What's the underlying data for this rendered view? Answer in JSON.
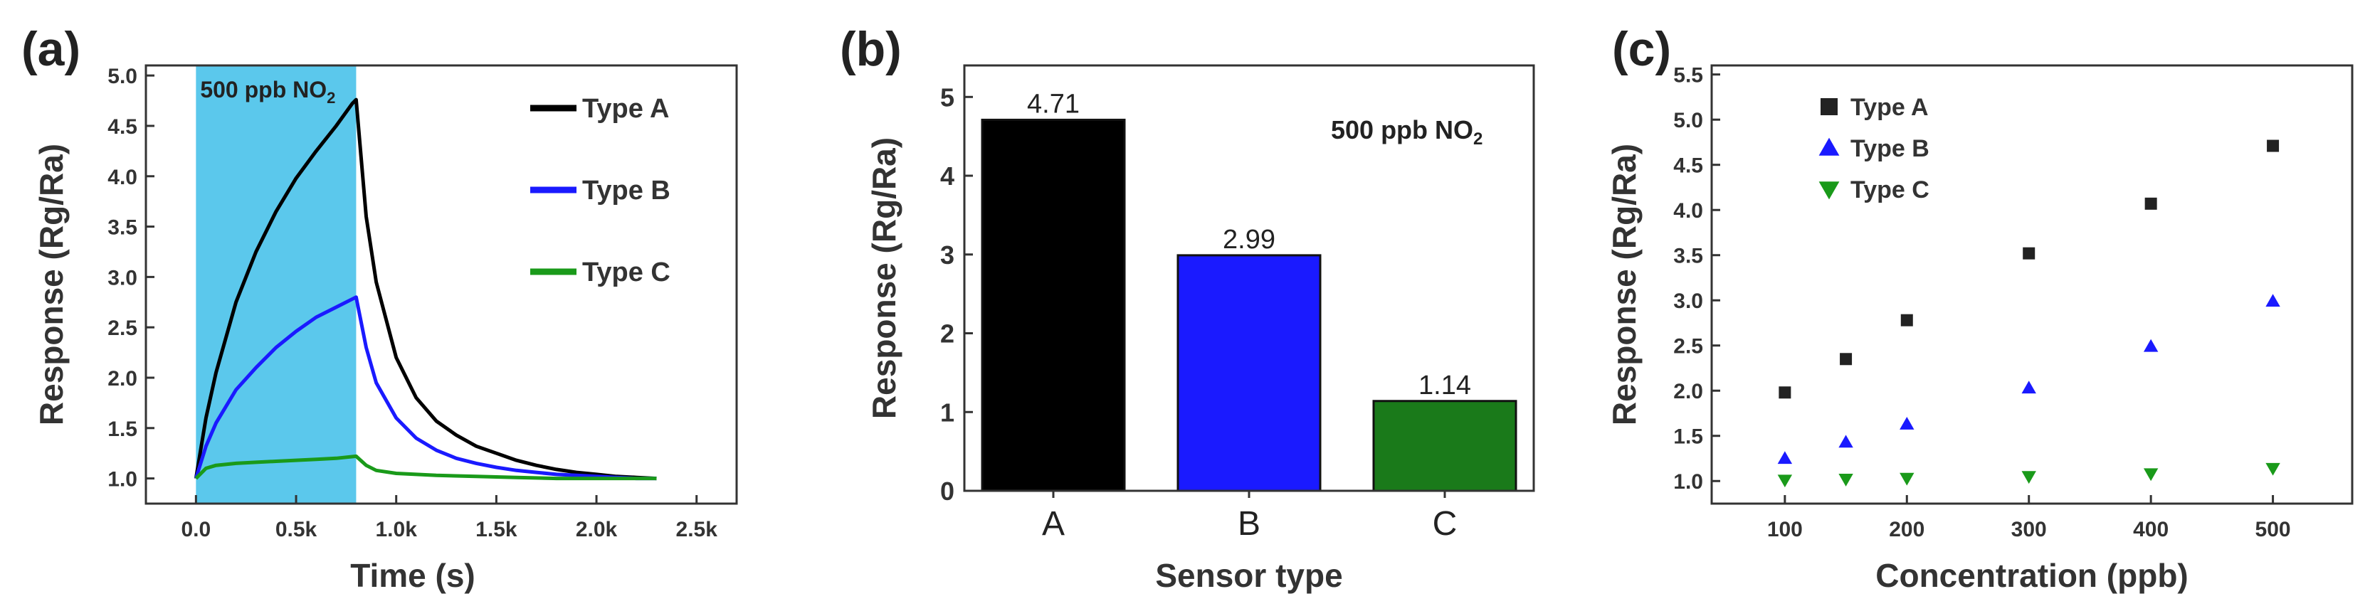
{
  "chart_data": [
    {
      "panel": "(a)",
      "type": "line",
      "xlabel": "Time (s)",
      "ylabel": "Response (Rg/Ra)",
      "xlim": [
        -250,
        2700
      ],
      "ylim": [
        0.75,
        5.1
      ],
      "x_ticks": [
        0,
        500,
        1000,
        1500,
        2000,
        2500
      ],
      "x_tick_labels": [
        "0.0",
        "0.5k",
        "1.0k",
        "1.5k",
        "2.0k",
        "2.5k"
      ],
      "y_ticks": [
        1.0,
        1.5,
        2.0,
        2.5,
        3.0,
        3.5,
        4.0,
        4.5,
        5.0
      ],
      "y_tick_labels": [
        "1.0",
        "1.5",
        "2.0",
        "2.5",
        "3.0",
        "3.5",
        "4.0",
        "4.5",
        "5.0"
      ],
      "annotation": {
        "text": "500 ppb NO",
        "subscript": "2",
        "x_start": 0,
        "x_end": 800,
        "color": "#5bc8ec"
      },
      "legend": "top-right",
      "series": [
        {
          "name": "Type A",
          "color": "#000000",
          "x": [
            0,
            50,
            100,
            200,
            300,
            400,
            500,
            600,
            700,
            780,
            800,
            850,
            900,
            1000,
            1100,
            1200,
            1300,
            1400,
            1500,
            1600,
            1700,
            1800,
            1900,
            2000,
            2100,
            2200,
            2300
          ],
          "y": [
            1.0,
            1.6,
            2.05,
            2.75,
            3.25,
            3.65,
            3.98,
            4.25,
            4.5,
            4.72,
            4.76,
            3.6,
            2.95,
            2.2,
            1.8,
            1.57,
            1.43,
            1.32,
            1.25,
            1.18,
            1.13,
            1.09,
            1.06,
            1.04,
            1.02,
            1.01,
            1.0
          ]
        },
        {
          "name": "Type B",
          "color": "#1a1aff",
          "x": [
            0,
            50,
            100,
            200,
            300,
            400,
            500,
            600,
            700,
            800,
            850,
            900,
            1000,
            1100,
            1200,
            1300,
            1400,
            1500,
            1600,
            1700,
            1800,
            1900,
            2000,
            2100,
            2200,
            2300
          ],
          "y": [
            1.0,
            1.32,
            1.55,
            1.88,
            2.1,
            2.3,
            2.46,
            2.6,
            2.7,
            2.8,
            2.3,
            1.95,
            1.6,
            1.4,
            1.28,
            1.2,
            1.15,
            1.11,
            1.08,
            1.06,
            1.04,
            1.03,
            1.02,
            1.01,
            1.0,
            1.0
          ]
        },
        {
          "name": "Type C",
          "color": "#1a9a1a",
          "x": [
            0,
            50,
            100,
            200,
            300,
            400,
            500,
            600,
            700,
            800,
            850,
            900,
            1000,
            1200,
            1400,
            1600,
            1800,
            2000,
            2200,
            2300
          ],
          "y": [
            1.0,
            1.1,
            1.13,
            1.15,
            1.16,
            1.17,
            1.18,
            1.19,
            1.2,
            1.22,
            1.13,
            1.08,
            1.05,
            1.03,
            1.02,
            1.01,
            1.0,
            1.0,
            1.0,
            1.0
          ]
        }
      ]
    },
    {
      "panel": "(b)",
      "type": "bar",
      "xlabel": "Sensor type",
      "ylabel": "Response (Rg/Ra)",
      "ylim": [
        0,
        5.4
      ],
      "y_ticks": [
        0,
        1,
        2,
        3,
        4,
        5
      ],
      "y_tick_labels": [
        "0",
        "1",
        "2",
        "3",
        "4",
        "5"
      ],
      "annotation": {
        "text": "500 ppb NO",
        "subscript": "2"
      },
      "categories": [
        "A",
        "B",
        "C"
      ],
      "values": [
        4.71,
        2.99,
        1.14
      ],
      "value_labels": [
        "4.71",
        "2.99",
        "1.14"
      ],
      "colors": [
        "#000000",
        "#1a1aff",
        "#1a7a1a"
      ]
    },
    {
      "panel": "(c)",
      "type": "scatter",
      "xlabel": "Concentration (ppb)",
      "ylabel": "Response (Rg/Ra)",
      "xlim": [
        40,
        565
      ],
      "ylim": [
        0.75,
        5.6
      ],
      "x_ticks": [
        100,
        200,
        300,
        400,
        500
      ],
      "x_tick_labels": [
        "100",
        "200",
        "300",
        "400",
        "500"
      ],
      "y_ticks": [
        1.0,
        1.5,
        2.0,
        2.5,
        3.0,
        3.5,
        4.0,
        4.5,
        5.0,
        5.5
      ],
      "y_tick_labels": [
        "1.0",
        "1.5",
        "2.0",
        "2.5",
        "3.0",
        "3.5",
        "4.0",
        "4.5",
        "5.0",
        "5.5"
      ],
      "legend": "top-left",
      "series": [
        {
          "name": "Type A",
          "marker": "square",
          "color": "#222222",
          "x": [
            100,
            150,
            200,
            300,
            400,
            500
          ],
          "y": [
            1.98,
            2.35,
            2.78,
            3.52,
            4.07,
            4.71
          ]
        },
        {
          "name": "Type B",
          "marker": "triangle-up",
          "color": "#1a1aff",
          "x": [
            100,
            150,
            200,
            300,
            400,
            500
          ],
          "y": [
            1.25,
            1.43,
            1.63,
            2.03,
            2.49,
            2.99
          ]
        },
        {
          "name": "Type C",
          "marker": "triangle-down",
          "color": "#1a9a1a",
          "x": [
            100,
            150,
            200,
            300,
            400,
            500
          ],
          "y": [
            1.01,
            1.02,
            1.03,
            1.05,
            1.08,
            1.14
          ]
        }
      ]
    }
  ]
}
